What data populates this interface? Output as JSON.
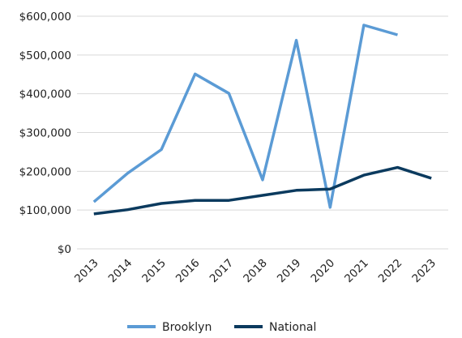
{
  "chart_data": {
    "type": "line",
    "title": "",
    "xlabel": "",
    "ylabel": "",
    "categories": [
      "2013",
      "2014",
      "2015",
      "2016",
      "2017",
      "2018",
      "2019",
      "2020",
      "2021",
      "2022",
      "2023"
    ],
    "ylim": [
      0,
      600000
    ],
    "yticks": [
      0,
      100000,
      200000,
      300000,
      400000,
      500000,
      600000
    ],
    "ytick_labels": [
      "$0",
      "$100,000",
      "$200,000",
      "$300,000",
      "$400,000",
      "$500,000",
      "$600,000"
    ],
    "grid": "horizontal",
    "legend_position": "bottom",
    "series": [
      {
        "name": "Brooklyn",
        "color": "#5b9bd5",
        "values": [
          121000,
          195000,
          256000,
          451000,
          401000,
          178000,
          538000,
          107000,
          577000,
          552000,
          null
        ]
      },
      {
        "name": "National",
        "color": "#0b3a5e",
        "values": [
          90000,
          101000,
          117000,
          125000,
          125000,
          138000,
          151000,
          154000,
          190000,
          210000,
          182000
        ]
      }
    ]
  }
}
